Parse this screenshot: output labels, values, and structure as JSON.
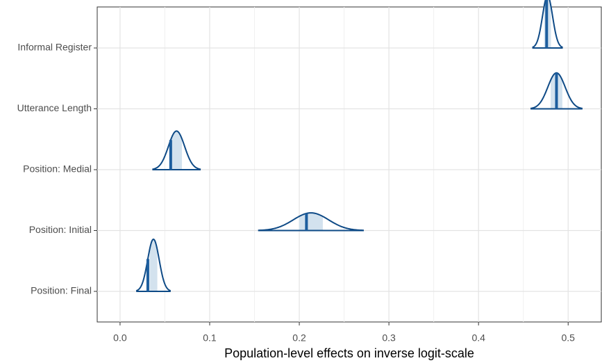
{
  "chart_data": {
    "type": "areas",
    "x_label": "Population-level effects on inverse logit-scale",
    "categories": [
      "Informal Register",
      "Utterance Length",
      "Position: Medial",
      "Position: Initial",
      "Position: Final"
    ],
    "medians": [
      0.476,
      0.487,
      0.0565,
      0.208,
      0.031
    ],
    "lower": [
      0.46,
      0.458,
      0.036,
      0.154,
      0.018
    ],
    "upper": [
      0.494,
      0.516,
      0.09,
      0.272,
      0.0565
    ],
    "xlim": [
      -0.0255,
      0.537
    ],
    "xticks": [
      {
        "value": 0,
        "label": "0.0"
      },
      0.1,
      0.2,
      0.3,
      0.4,
      0.5
    ],
    "grid": true,
    "line_color": "#0e4a86",
    "fill_color": "#d3e2ee",
    "median_color": "#1d5e9e"
  }
}
